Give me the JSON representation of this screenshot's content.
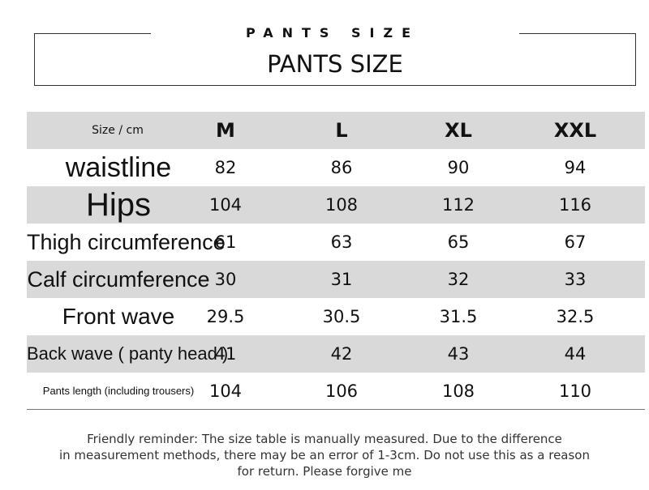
{
  "header": {
    "spaced_title": "PANTS SIZE",
    "title": "PANTS SIZE"
  },
  "table": {
    "columns": [
      "Size / cm",
      "M",
      "L",
      "XL",
      "XXL"
    ],
    "rows": [
      [
        "waistline",
        82,
        86,
        90,
        94
      ],
      [
        "Hips",
        104,
        108,
        112,
        116
      ],
      [
        "Thigh circumference",
        61,
        63,
        65,
        67
      ],
      [
        "Calf circumference",
        30,
        31,
        32,
        33
      ],
      [
        "Front wave",
        29.5,
        30.5,
        31.5,
        32.5
      ],
      [
        "Back wave ( panty head )",
        41,
        42,
        43,
        44
      ],
      [
        "Pants length (including trousers)",
        104,
        106,
        108,
        110
      ]
    ]
  },
  "footer": {
    "lines": [
      "Friendly reminder: The size table is manually measured. Due to the difference",
      "in measurement methods, there may be an error of 1-3cm. Do not use this as a reason",
      "for return. Please forgive me"
    ]
  }
}
